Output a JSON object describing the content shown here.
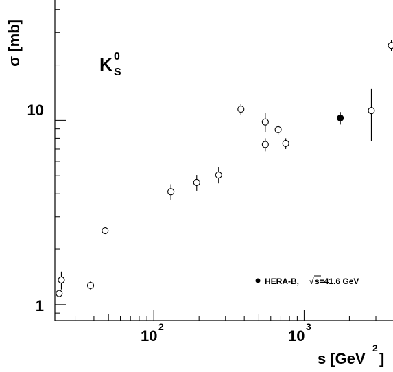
{
  "chart_data": {
    "type": "scatter",
    "x_scale": "log",
    "y_scale": "log",
    "xlim": [
      22,
      3900
    ],
    "ylim": [
      0.82,
      45
    ],
    "ylabel": "σ [mb]",
    "xlabel_main": "s [GeV",
    "xlabel_sup": "2",
    "xlabel_close": "]",
    "x_tick_labels": [
      {
        "base": "10",
        "exp": "2",
        "value": 100
      },
      {
        "base": "10",
        "exp": "3",
        "value": 1000
      }
    ],
    "y_tick_labels": [
      {
        "text": "1",
        "value": 1
      },
      {
        "text": "10",
        "value": 10
      }
    ],
    "particle_label": {
      "main": "K",
      "sup": "0",
      "sub": "S"
    },
    "legend": {
      "text_a": "HERA-B, ",
      "sqrt_symbol": "√",
      "text_b": "s=41.6 GeV",
      "placement": "bottom-right"
    },
    "series": [
      {
        "marker": "open-circle",
        "points": [
          {
            "x": 23.5,
            "y": 1.15,
            "yerr": 0.05
          },
          {
            "x": 24.3,
            "y": 1.36,
            "yerr": 0.15
          },
          {
            "x": 38,
            "y": 1.27,
            "yerr": 0.07
          },
          {
            "x": 47.5,
            "y": 2.52,
            "yerr": 0.05
          },
          {
            "x": 130,
            "y": 4.1,
            "yerr": 0.4
          },
          {
            "x": 193,
            "y": 4.6,
            "yerr": 0.45
          },
          {
            "x": 270,
            "y": 5.05,
            "yerr": 0.5
          },
          {
            "x": 380,
            "y": 11.5,
            "yerr": 0.8
          },
          {
            "x": 552,
            "y": 9.8,
            "yerr": 1.2
          },
          {
            "x": 552,
            "y": 7.4,
            "yerr": 0.6
          },
          {
            "x": 672,
            "y": 8.9,
            "yerr": 0.5
          },
          {
            "x": 755,
            "y": 7.5,
            "yerr": 0.5
          },
          {
            "x": 2800,
            "y": 11.3,
            "yerr": 3.6
          },
          {
            "x": 3800,
            "y": 25.5,
            "yerr": 1.8
          }
        ]
      },
      {
        "name": "HERA-B, √s=41.6 GeV",
        "marker": "filled-circle",
        "points": [
          {
            "x": 1741,
            "y": 10.3,
            "yerr": 0.8
          }
        ]
      }
    ]
  }
}
